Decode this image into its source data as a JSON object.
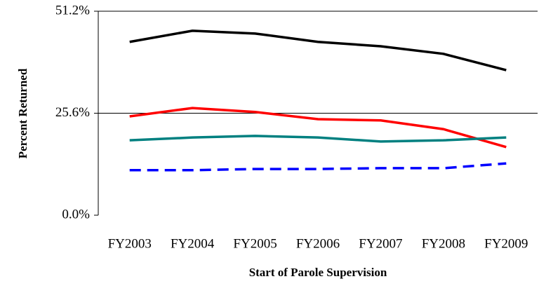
{
  "chart_data": {
    "type": "line",
    "x_label": "Start of Parole Supervision",
    "y_label": "Percent Returned",
    "categories": [
      "FY2003",
      "FY2004",
      "FY2005",
      "FY2006",
      "FY2007",
      "FY2008",
      "FY2009"
    ],
    "series": [
      {
        "color": "#000000",
        "style": "solid",
        "values": [
          43.5,
          46.3,
          45.6,
          43.5,
          42.4,
          40.5,
          36.4
        ]
      },
      {
        "color": "#ff0000",
        "style": "solid",
        "values": [
          24.8,
          26.9,
          25.9,
          24.1,
          23.8,
          21.6,
          17.1
        ]
      },
      {
        "color": "#008080",
        "style": "solid",
        "values": [
          18.8,
          19.5,
          19.9,
          19.5,
          18.5,
          18.8,
          19.5
        ]
      },
      {
        "color": "#0000ff",
        "style": "dashed",
        "values": [
          11.3,
          11.3,
          11.6,
          11.6,
          11.8,
          11.8,
          13.0
        ]
      }
    ],
    "ylim": [
      0,
      51.2
    ],
    "yticks": [
      {
        "value": 0,
        "label": "0.0%"
      },
      {
        "value": 25.6,
        "label": "25.6%"
      },
      {
        "value": 51.2,
        "label": "51.2%"
      }
    ],
    "grid": true
  }
}
